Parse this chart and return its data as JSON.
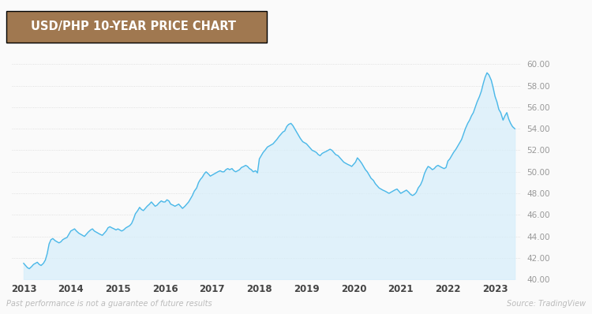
{
  "title": "USD/PHP 10-YEAR PRICE CHART",
  "title_bg_color": "#a07850",
  "title_text_color": "#ffffff",
  "line_color": "#4ab8e8",
  "fill_color": "#d6eefa",
  "bg_color": "#fafafa",
  "dot_grid_color": "#d8d8d8",
  "ylabel_color": "#999999",
  "xlabel_color": "#444444",
  "footnote_left": "Past performance is not a guarantee of future results",
  "footnote_right": "Source: TradingView",
  "ylim": [
    40.0,
    61.0
  ],
  "yticks": [
    40.0,
    42.0,
    44.0,
    46.0,
    48.0,
    50.0,
    52.0,
    54.0,
    56.0,
    58.0,
    60.0
  ],
  "xticks": [
    2013,
    2014,
    2015,
    2016,
    2017,
    2018,
    2019,
    2020,
    2021,
    2022,
    2023
  ],
  "times": [
    2013.0,
    2013.04,
    2013.08,
    2013.12,
    2013.17,
    2013.21,
    2013.25,
    2013.29,
    2013.33,
    2013.37,
    2013.42,
    2013.46,
    2013.5,
    2013.54,
    2013.58,
    2013.62,
    2013.67,
    2013.71,
    2013.75,
    2013.79,
    2013.83,
    2013.87,
    2013.92,
    2013.96,
    2014.0,
    2014.04,
    2014.08,
    2014.12,
    2014.17,
    2014.21,
    2014.25,
    2014.29,
    2014.33,
    2014.37,
    2014.42,
    2014.46,
    2014.5,
    2014.54,
    2014.58,
    2014.62,
    2014.67,
    2014.71,
    2014.75,
    2014.79,
    2014.83,
    2014.87,
    2014.92,
    2014.96,
    2015.0,
    2015.04,
    2015.08,
    2015.12,
    2015.17,
    2015.21,
    2015.25,
    2015.29,
    2015.33,
    2015.37,
    2015.42,
    2015.46,
    2015.5,
    2015.54,
    2015.58,
    2015.62,
    2015.67,
    2015.71,
    2015.75,
    2015.79,
    2015.83,
    2015.87,
    2015.92,
    2015.96,
    2016.0,
    2016.04,
    2016.08,
    2016.12,
    2016.17,
    2016.21,
    2016.25,
    2016.29,
    2016.33,
    2016.37,
    2016.42,
    2016.46,
    2016.5,
    2016.54,
    2016.58,
    2016.62,
    2016.67,
    2016.71,
    2016.75,
    2016.79,
    2016.83,
    2016.87,
    2016.92,
    2016.96,
    2017.0,
    2017.04,
    2017.08,
    2017.12,
    2017.17,
    2017.21,
    2017.25,
    2017.29,
    2017.33,
    2017.37,
    2017.42,
    2017.46,
    2017.5,
    2017.54,
    2017.58,
    2017.62,
    2017.67,
    2017.71,
    2017.75,
    2017.79,
    2017.83,
    2017.87,
    2017.92,
    2017.96,
    2018.0,
    2018.04,
    2018.08,
    2018.12,
    2018.17,
    2018.21,
    2018.25,
    2018.29,
    2018.33,
    2018.37,
    2018.42,
    2018.46,
    2018.5,
    2018.54,
    2018.58,
    2018.62,
    2018.67,
    2018.71,
    2018.75,
    2018.79,
    2018.83,
    2018.87,
    2018.92,
    2018.96,
    2019.0,
    2019.04,
    2019.08,
    2019.12,
    2019.17,
    2019.21,
    2019.25,
    2019.29,
    2019.33,
    2019.37,
    2019.42,
    2019.46,
    2019.5,
    2019.54,
    2019.58,
    2019.62,
    2019.67,
    2019.71,
    2019.75,
    2019.79,
    2019.83,
    2019.87,
    2019.92,
    2019.96,
    2020.0,
    2020.04,
    2020.08,
    2020.12,
    2020.17,
    2020.21,
    2020.25,
    2020.29,
    2020.33,
    2020.37,
    2020.42,
    2020.46,
    2020.5,
    2020.54,
    2020.58,
    2020.62,
    2020.67,
    2020.71,
    2020.75,
    2020.79,
    2020.83,
    2020.87,
    2020.92,
    2020.96,
    2021.0,
    2021.04,
    2021.08,
    2021.12,
    2021.17,
    2021.21,
    2021.25,
    2021.29,
    2021.33,
    2021.37,
    2021.42,
    2021.46,
    2021.5,
    2021.54,
    2021.58,
    2021.62,
    2021.67,
    2021.71,
    2021.75,
    2021.79,
    2021.83,
    2021.87,
    2021.92,
    2021.96,
    2022.0,
    2022.04,
    2022.08,
    2022.12,
    2022.17,
    2022.21,
    2022.25,
    2022.29,
    2022.33,
    2022.37,
    2022.42,
    2022.46,
    2022.5,
    2022.54,
    2022.58,
    2022.62,
    2022.67,
    2022.71,
    2022.75,
    2022.79,
    2022.83,
    2022.87,
    2022.92,
    2022.96,
    2023.0,
    2023.04,
    2023.08,
    2023.12,
    2023.17,
    2023.21,
    2023.25,
    2023.29,
    2023.33,
    2023.37,
    2023.42
  ],
  "prices": [
    41.5,
    41.3,
    41.1,
    41.0,
    41.2,
    41.4,
    41.5,
    41.6,
    41.4,
    41.3,
    41.5,
    41.8,
    42.4,
    43.3,
    43.7,
    43.8,
    43.6,
    43.5,
    43.4,
    43.5,
    43.7,
    43.8,
    43.9,
    44.2,
    44.5,
    44.6,
    44.7,
    44.5,
    44.3,
    44.2,
    44.1,
    44.0,
    44.2,
    44.4,
    44.6,
    44.7,
    44.5,
    44.4,
    44.3,
    44.2,
    44.1,
    44.3,
    44.5,
    44.8,
    44.9,
    44.8,
    44.7,
    44.6,
    44.7,
    44.6,
    44.5,
    44.6,
    44.8,
    44.9,
    45.0,
    45.2,
    45.6,
    46.1,
    46.4,
    46.7,
    46.5,
    46.4,
    46.6,
    46.8,
    47.0,
    47.2,
    47.0,
    46.8,
    46.9,
    47.1,
    47.3,
    47.2,
    47.2,
    47.4,
    47.3,
    47.0,
    46.9,
    46.8,
    46.9,
    47.0,
    46.8,
    46.6,
    46.8,
    47.0,
    47.2,
    47.5,
    47.8,
    48.2,
    48.5,
    49.0,
    49.3,
    49.5,
    49.8,
    50.0,
    49.8,
    49.6,
    49.7,
    49.8,
    49.9,
    50.0,
    50.1,
    50.0,
    50.0,
    50.2,
    50.3,
    50.2,
    50.3,
    50.1,
    50.0,
    50.1,
    50.2,
    50.4,
    50.5,
    50.6,
    50.5,
    50.3,
    50.2,
    50.0,
    50.1,
    49.9,
    51.2,
    51.5,
    51.8,
    52.0,
    52.3,
    52.4,
    52.5,
    52.6,
    52.8,
    53.0,
    53.3,
    53.5,
    53.7,
    53.8,
    54.2,
    54.4,
    54.5,
    54.3,
    54.0,
    53.7,
    53.4,
    53.1,
    52.8,
    52.7,
    52.6,
    52.4,
    52.2,
    52.0,
    51.9,
    51.8,
    51.6,
    51.5,
    51.7,
    51.8,
    51.9,
    52.0,
    52.1,
    52.0,
    51.8,
    51.6,
    51.5,
    51.3,
    51.1,
    50.9,
    50.8,
    50.7,
    50.6,
    50.5,
    50.7,
    50.9,
    51.3,
    51.1,
    50.8,
    50.5,
    50.2,
    50.0,
    49.7,
    49.4,
    49.2,
    48.9,
    48.7,
    48.5,
    48.4,
    48.3,
    48.2,
    48.1,
    48.0,
    48.1,
    48.2,
    48.3,
    48.4,
    48.2,
    48.0,
    48.1,
    48.2,
    48.3,
    48.1,
    47.9,
    47.8,
    47.9,
    48.1,
    48.5,
    48.8,
    49.2,
    49.8,
    50.2,
    50.5,
    50.4,
    50.2,
    50.3,
    50.5,
    50.6,
    50.5,
    50.4,
    50.3,
    50.4,
    51.0,
    51.2,
    51.5,
    51.8,
    52.1,
    52.4,
    52.7,
    53.0,
    53.5,
    54.0,
    54.5,
    54.8,
    55.2,
    55.5,
    56.0,
    56.5,
    57.0,
    57.5,
    58.2,
    58.8,
    59.2,
    59.0,
    58.5,
    57.8,
    57.0,
    56.5,
    55.8,
    55.5,
    54.8,
    55.2,
    55.5,
    54.9,
    54.5,
    54.2,
    54.0
  ]
}
